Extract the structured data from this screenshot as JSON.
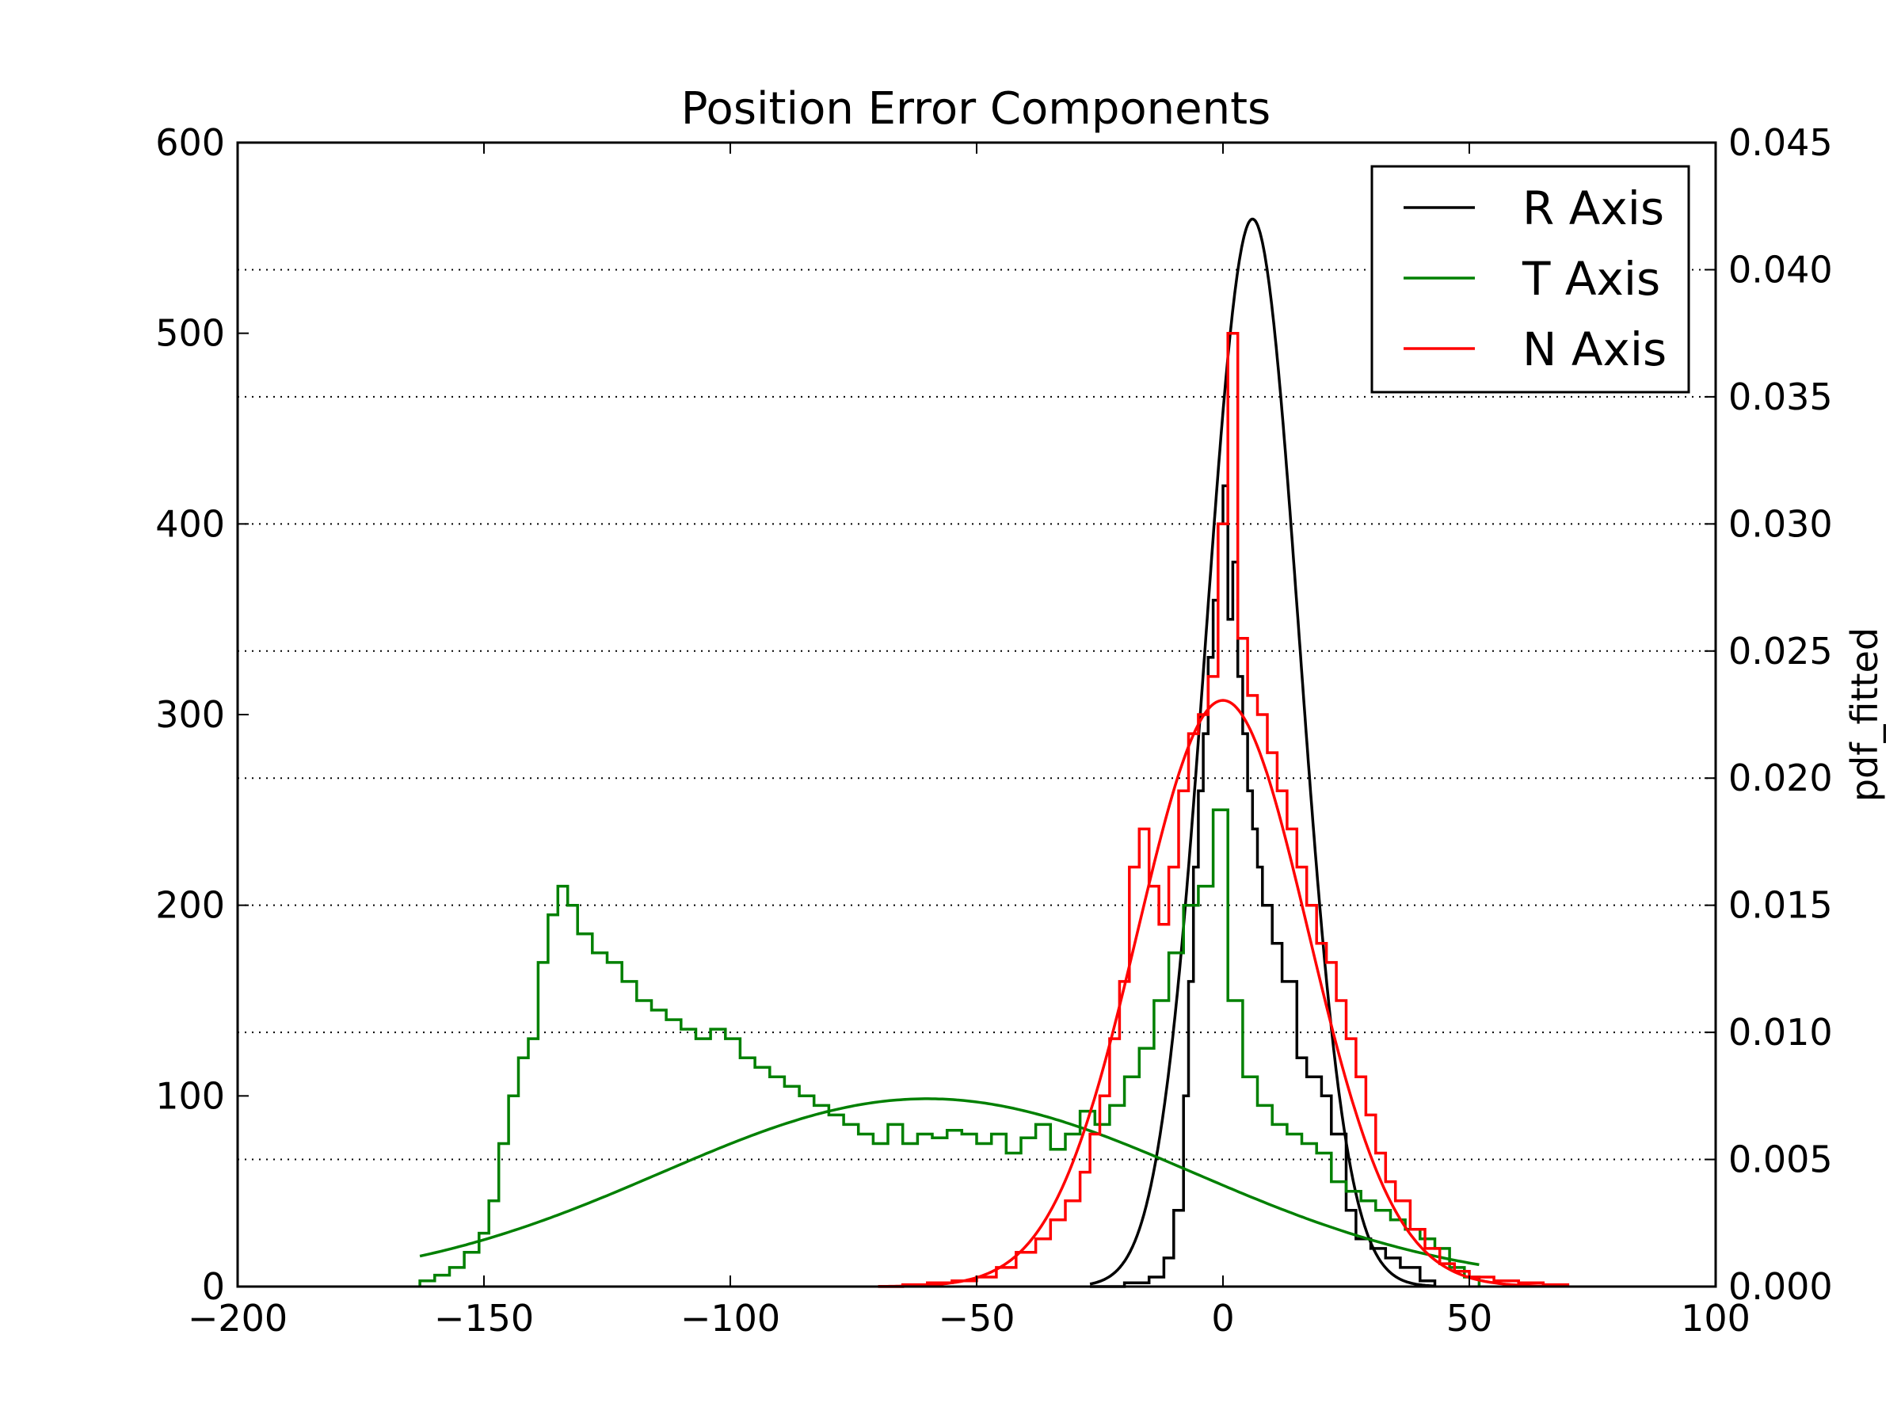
{
  "chart_data": {
    "type": "line",
    "title": "Position Error Components",
    "xlabel": "",
    "ylabel_left": "",
    "ylabel_right": "pdf_fitted",
    "xlim": [
      -200,
      100
    ],
    "ylim_left": [
      0,
      600
    ],
    "ylim_right": [
      0,
      0.045
    ],
    "xticks": [
      -200,
      -150,
      -100,
      -50,
      0,
      50,
      100
    ],
    "xtick_labels": [
      "−200",
      "−150",
      "−100",
      "−50",
      "0",
      "50",
      "100"
    ],
    "yticks_left": [
      0,
      100,
      200,
      300,
      400,
      500,
      600
    ],
    "ytick_labels_left": [
      "0",
      "100",
      "200",
      "300",
      "400",
      "500",
      "600"
    ],
    "yticks_right": [
      0,
      0.005,
      0.01,
      0.015,
      0.02,
      0.025,
      0.03,
      0.035,
      0.04,
      0.045
    ],
    "ytick_labels_right": [
      "0.000",
      "0.005",
      "0.010",
      "0.015",
      "0.020",
      "0.025",
      "0.030",
      "0.035",
      "0.040",
      "0.045"
    ],
    "grid": "horizontal dotted lines at right-axis ticks",
    "legend_position": "top-right",
    "series": [
      {
        "name": "R Axis",
        "color": "#000000",
        "histogram": {
          "x": [
            -27,
            -20,
            -15,
            -12,
            -10,
            -8,
            -7,
            -6,
            -5,
            -4,
            -3,
            -2,
            -1,
            0,
            1,
            2,
            3,
            4,
            5,
            6,
            7,
            8,
            10,
            12,
            15,
            17,
            20,
            22,
            25,
            27,
            30,
            33,
            36,
            40,
            43
          ],
          "counts": [
            0,
            2,
            5,
            15,
            40,
            100,
            160,
            220,
            260,
            290,
            330,
            360,
            400,
            420,
            350,
            380,
            320,
            290,
            260,
            240,
            220,
            200,
            180,
            160,
            120,
            110,
            100,
            80,
            40,
            25,
            20,
            15,
            10,
            3,
            0
          ]
        },
        "fit": {
          "distribution": "normal",
          "mean": 6,
          "std": 9.5
        }
      },
      {
        "name": "T Axis",
        "color": "#008000",
        "histogram": {
          "x": [
            -163,
            -160,
            -157,
            -154,
            -151,
            -149,
            -147,
            -145,
            -143,
            -141,
            -139,
            -137,
            -135,
            -133,
            -131,
            -128,
            -125,
            -122,
            -119,
            -116,
            -113,
            -110,
            -107,
            -104,
            -101,
            -98,
            -95,
            -92,
            -89,
            -86,
            -83,
            -80,
            -77,
            -74,
            -71,
            -68,
            -65,
            -62,
            -59,
            -56,
            -53,
            -50,
            -47,
            -44,
            -41,
            -38,
            -35,
            -32,
            -29,
            -26,
            -23,
            -20,
            -17,
            -14,
            -11,
            -8,
            -5,
            -2,
            1,
            4,
            7,
            10,
            13,
            16,
            19,
            22,
            25,
            28,
            31,
            34,
            37,
            40,
            43,
            46,
            49,
            52
          ],
          "counts": [
            3,
            6,
            10,
            18,
            28,
            45,
            75,
            100,
            120,
            130,
            170,
            195,
            210,
            200,
            185,
            175,
            170,
            160,
            150,
            145,
            140,
            135,
            130,
            135,
            130,
            120,
            115,
            110,
            105,
            100,
            95,
            90,
            85,
            80,
            75,
            85,
            75,
            80,
            78,
            82,
            80,
            75,
            80,
            70,
            78,
            85,
            72,
            80,
            92,
            85,
            95,
            110,
            125,
            150,
            175,
            200,
            210,
            250,
            150,
            110,
            95,
            85,
            80,
            75,
            70,
            55,
            50,
            45,
            40,
            35,
            30,
            25,
            20,
            10,
            5,
            0
          ]
        },
        "fit": {
          "distribution": "normal",
          "mean": -60,
          "std": 54
        }
      },
      {
        "name": "N Axis",
        "color": "#ff0000",
        "histogram": {
          "x": [
            -70,
            -65,
            -60,
            -55,
            -50,
            -46,
            -42,
            -38,
            -35,
            -32,
            -29,
            -27,
            -25,
            -23,
            -21,
            -19,
            -17,
            -15,
            -13,
            -11,
            -9,
            -7,
            -5,
            -3,
            -1,
            1,
            3,
            5,
            7,
            9,
            11,
            13,
            15,
            17,
            19,
            21,
            23,
            25,
            27,
            29,
            31,
            33,
            35,
            38,
            41,
            44,
            47,
            50,
            55,
            60,
            65,
            70
          ],
          "counts": [
            0,
            1,
            2,
            3,
            5,
            10,
            18,
            25,
            35,
            45,
            60,
            80,
            100,
            130,
            160,
            220,
            240,
            210,
            190,
            220,
            260,
            290,
            300,
            320,
            400,
            500,
            340,
            310,
            300,
            280,
            260,
            240,
            220,
            200,
            180,
            170,
            150,
            130,
            110,
            90,
            70,
            55,
            45,
            30,
            20,
            12,
            8,
            5,
            3,
            2,
            1,
            0
          ]
        },
        "fit": {
          "distribution": "normal",
          "mean": 0,
          "std": 17.3
        }
      }
    ]
  }
}
